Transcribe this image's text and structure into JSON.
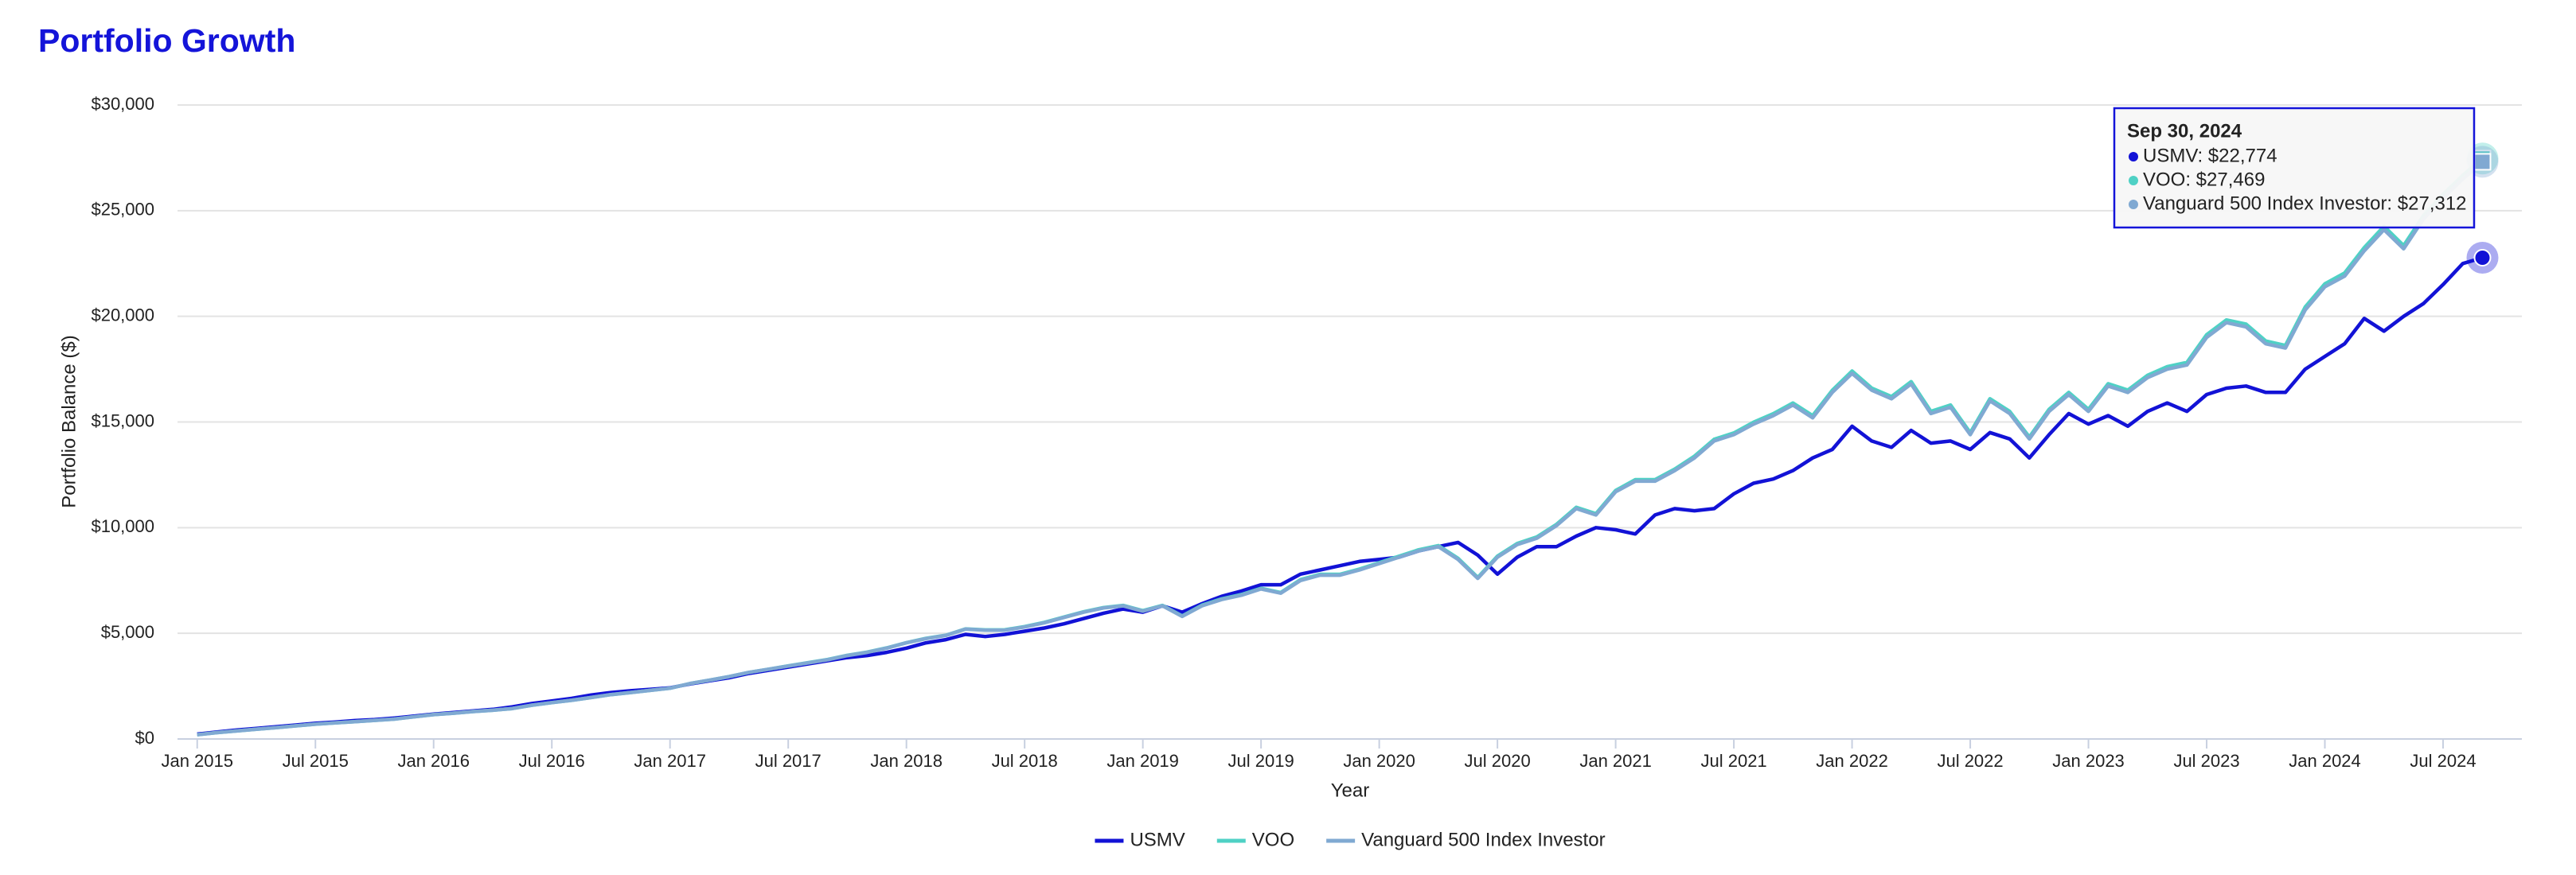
{
  "chart_data": {
    "type": "line",
    "title": "Portfolio Growth",
    "xlabel": "Year",
    "ylabel": "Portfolio Balance ($)",
    "x": [
      "2015-01",
      "2015-02",
      "2015-03",
      "2015-04",
      "2015-05",
      "2015-06",
      "2015-07",
      "2015-08",
      "2015-09",
      "2015-10",
      "2015-11",
      "2015-12",
      "2016-01",
      "2016-02",
      "2016-03",
      "2016-04",
      "2016-05",
      "2016-06",
      "2016-07",
      "2016-08",
      "2016-09",
      "2016-10",
      "2016-11",
      "2016-12",
      "2017-01",
      "2017-02",
      "2017-03",
      "2017-04",
      "2017-05",
      "2017-06",
      "2017-07",
      "2017-08",
      "2017-09",
      "2017-10",
      "2017-11",
      "2017-12",
      "2018-01",
      "2018-02",
      "2018-03",
      "2018-04",
      "2018-05",
      "2018-06",
      "2018-07",
      "2018-08",
      "2018-09",
      "2018-10",
      "2018-11",
      "2018-12",
      "2019-01",
      "2019-02",
      "2019-03",
      "2019-04",
      "2019-05",
      "2019-06",
      "2019-07",
      "2019-08",
      "2019-09",
      "2019-10",
      "2019-11",
      "2019-12",
      "2020-01",
      "2020-02",
      "2020-03",
      "2020-04",
      "2020-05",
      "2020-06",
      "2020-07",
      "2020-08",
      "2020-09",
      "2020-10",
      "2020-11",
      "2020-12",
      "2021-01",
      "2021-02",
      "2021-03",
      "2021-04",
      "2021-05",
      "2021-06",
      "2021-07",
      "2021-08",
      "2021-09",
      "2021-10",
      "2021-11",
      "2021-12",
      "2022-01",
      "2022-02",
      "2022-03",
      "2022-04",
      "2022-05",
      "2022-06",
      "2022-07",
      "2022-08",
      "2022-09",
      "2022-10",
      "2022-11",
      "2022-12",
      "2023-01",
      "2023-02",
      "2023-03",
      "2023-04",
      "2023-05",
      "2023-06",
      "2023-07",
      "2023-08",
      "2023-09",
      "2023-10",
      "2023-11",
      "2023-12",
      "2024-01",
      "2024-02",
      "2024-03",
      "2024-04",
      "2024-05",
      "2024-06",
      "2024-07",
      "2024-08",
      "2024-09"
    ],
    "series": [
      {
        "name": "USMV",
        "color": "#1212d6",
        "values": [
          230,
          330,
          420,
          500,
          580,
          660,
          740,
          800,
          870,
          920,
          990,
          1080,
          1180,
          1250,
          1330,
          1400,
          1520,
          1680,
          1800,
          1920,
          2080,
          2200,
          2280,
          2350,
          2420,
          2600,
          2750,
          2900,
          3100,
          3250,
          3400,
          3550,
          3700,
          3850,
          3950,
          4100,
          4300,
          4550,
          4700,
          4950,
          4850,
          4950,
          5100,
          5250,
          5450,
          5700,
          5950,
          6150,
          6000,
          6300,
          6000,
          6400,
          6750,
          7000,
          7300,
          7300,
          7800,
          8000,
          8200,
          8400,
          8500,
          8600,
          8900,
          9100,
          9300,
          8700,
          7800,
          8600,
          9100,
          9100,
          9600,
          10000,
          9900,
          9700,
          10600,
          10900,
          10800,
          10900,
          11600,
          12100,
          12300,
          12700,
          13300,
          13700,
          14800,
          14100,
          13800,
          14600,
          14000,
          14100,
          13700,
          14500,
          14200,
          13300,
          14400,
          15400,
          14900,
          15300,
          14800,
          15500,
          15900,
          15500,
          16300,
          16600,
          16700,
          16400,
          16400,
          17500,
          18100,
          18700,
          19900,
          19300,
          20000,
          20600,
          21500,
          22500,
          22774
        ]
      },
      {
        "name": "VOO",
        "color": "#4fd1c5",
        "values": [
          200,
          300,
          380,
          460,
          540,
          620,
          700,
          760,
          820,
          880,
          940,
          1050,
          1150,
          1220,
          1300,
          1360,
          1440,
          1600,
          1720,
          1830,
          1960,
          2100,
          2200,
          2300,
          2400,
          2620,
          2780,
          2950,
          3150,
          3300,
          3460,
          3610,
          3760,
          3960,
          4110,
          4310,
          4560,
          4760,
          4910,
          5210,
          5160,
          5170,
          5320,
          5520,
          5770,
          6020,
          6220,
          6320,
          6070,
          6320,
          5820,
          6330,
          6630,
          6830,
          7130,
          6930,
          7540,
          7790,
          7790,
          8040,
          8340,
          8650,
          8950,
          9150,
          8550,
          7640,
          8650,
          9250,
          9560,
          10160,
          10960,
          10660,
          11760,
          12270,
          12270,
          12770,
          13380,
          14180,
          14480,
          14990,
          15390,
          15900,
          15300,
          16500,
          17410,
          16600,
          16200,
          16910,
          15500,
          15800,
          14490,
          16100,
          15500,
          14290,
          15600,
          16400,
          15600,
          16810,
          16510,
          17210,
          17620,
          17820,
          19130,
          19830,
          19630,
          18830,
          18620,
          20440,
          21540,
          22050,
          23250,
          24260,
          23350,
          24760,
          25770,
          26670,
          27469
        ]
      },
      {
        "name": "Vanguard 500 Index Investor",
        "color": "#80a9d2",
        "values": [
          200,
          300,
          380,
          460,
          540,
          620,
          700,
          760,
          820,
          880,
          940,
          1050,
          1150,
          1220,
          1300,
          1360,
          1440,
          1600,
          1720,
          1830,
          1960,
          2100,
          2200,
          2300,
          2400,
          2620,
          2780,
          2950,
          3150,
          3300,
          3450,
          3600,
          3750,
          3950,
          4100,
          4300,
          4550,
          4750,
          4900,
          5200,
          5150,
          5150,
          5300,
          5500,
          5750,
          6000,
          6200,
          6300,
          6050,
          6300,
          5800,
          6300,
          6600,
          6800,
          7100,
          6900,
          7500,
          7750,
          7750,
          8000,
          8300,
          8600,
          8900,
          9100,
          8500,
          7600,
          8600,
          9200,
          9500,
          10100,
          10900,
          10600,
          11700,
          12200,
          12200,
          12700,
          13300,
          14100,
          14400,
          14900,
          15300,
          15800,
          15200,
          16400,
          17300,
          16500,
          16100,
          16800,
          15400,
          15700,
          14400,
          16000,
          15400,
          14200,
          15500,
          16300,
          15500,
          16700,
          16400,
          17100,
          17500,
          17700,
          19000,
          19700,
          19500,
          18700,
          18500,
          20300,
          21400,
          21900,
          23100,
          24100,
          23200,
          24600,
          25600,
          26500,
          27312
        ]
      }
    ],
    "xlim": [
      "2014-12",
      "2024-11"
    ],
    "xticks": [
      {
        "value": "2015-01",
        "label": "Jan 2015"
      },
      {
        "value": "2015-07",
        "label": "Jul 2015"
      },
      {
        "value": "2016-01",
        "label": "Jan 2016"
      },
      {
        "value": "2016-07",
        "label": "Jul 2016"
      },
      {
        "value": "2017-01",
        "label": "Jan 2017"
      },
      {
        "value": "2017-07",
        "label": "Jul 2017"
      },
      {
        "value": "2018-01",
        "label": "Jan 2018"
      },
      {
        "value": "2018-07",
        "label": "Jul 2018"
      },
      {
        "value": "2019-01",
        "label": "Jan 2019"
      },
      {
        "value": "2019-07",
        "label": "Jul 2019"
      },
      {
        "value": "2020-01",
        "label": "Jan 2020"
      },
      {
        "value": "2020-07",
        "label": "Jul 2020"
      },
      {
        "value": "2021-01",
        "label": "Jan 2021"
      },
      {
        "value": "2021-07",
        "label": "Jul 2021"
      },
      {
        "value": "2022-01",
        "label": "Jan 2022"
      },
      {
        "value": "2022-07",
        "label": "Jul 2022"
      },
      {
        "value": "2023-01",
        "label": "Jan 2023"
      },
      {
        "value": "2023-07",
        "label": "Jul 2023"
      },
      {
        "value": "2024-01",
        "label": "Jan 2024"
      },
      {
        "value": "2024-07",
        "label": "Jul 2024"
      }
    ],
    "ylim": [
      0,
      30000
    ],
    "yticks": [
      {
        "value": 0,
        "label": "$0"
      },
      {
        "value": 5000,
        "label": "$5,000"
      },
      {
        "value": 10000,
        "label": "$10,000"
      },
      {
        "value": 15000,
        "label": "$15,000"
      },
      {
        "value": 20000,
        "label": "$20,000"
      },
      {
        "value": 25000,
        "label": "$25,000"
      },
      {
        "value": 30000,
        "label": "$30,000"
      }
    ],
    "grid": true,
    "legend": "bottom",
    "tooltip": {
      "title": "Sep 30, 2024",
      "entries": [
        "USMV: $22,774",
        "VOO: $27,469",
        "Vanguard 500 Index Investor: $27,312"
      ]
    }
  }
}
